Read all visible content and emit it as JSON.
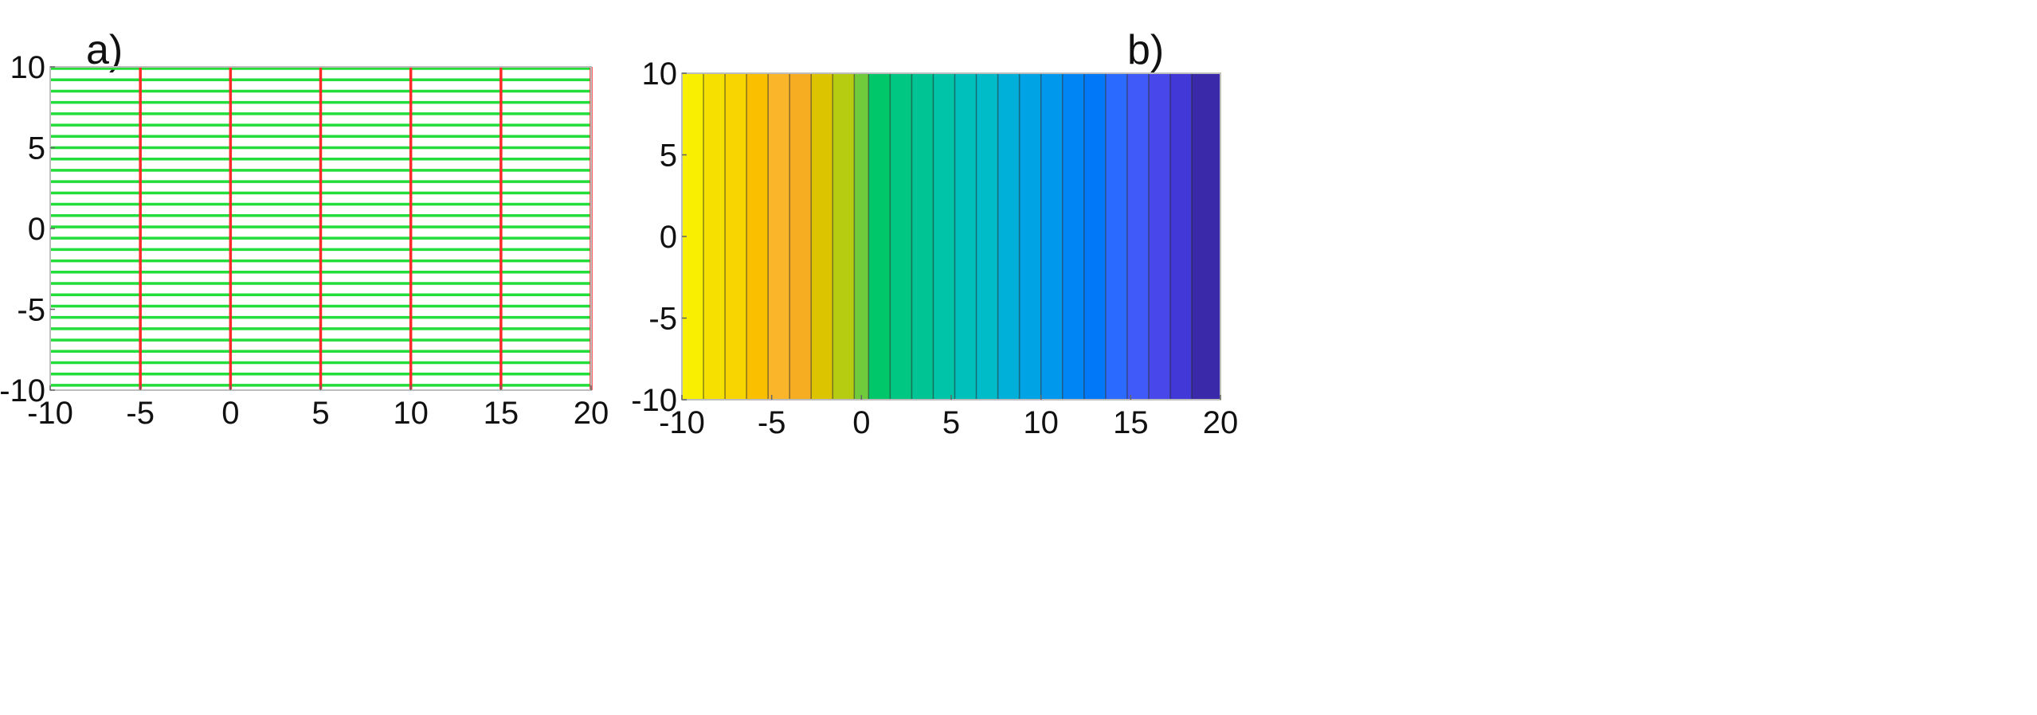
{
  "chart_data": [
    {
      "type": "line",
      "panel_label": "a)",
      "xlim": [
        -10,
        20
      ],
      "ylim": [
        -10,
        10
      ],
      "xticks": [
        "-10",
        "-5",
        "0",
        "5",
        "10",
        "15",
        "20"
      ],
      "yticks": [
        "10",
        "5",
        "0",
        "-5",
        "-10"
      ],
      "series": [
        {
          "color": "#ff2a2a",
          "orientation": "vertical",
          "positions": [
            -5,
            0,
            5,
            10,
            15,
            20
          ]
        },
        {
          "color": "#22dd3a",
          "orientation": "horizontal",
          "positions": [
            -9.7,
            -9.0,
            -8.3,
            -7.6,
            -6.9,
            -6.2,
            -5.5,
            -4.8,
            -4.1,
            -3.4,
            -2.7,
            -2.0,
            -1.3,
            -0.6,
            0.1,
            0.8,
            1.5,
            2.2,
            2.9,
            3.6,
            4.3,
            5.0,
            5.7,
            6.4,
            7.1,
            7.8,
            8.5,
            9.2,
            9.9
          ]
        }
      ],
      "grid": false,
      "legend": "none"
    },
    {
      "type": "heatmap",
      "panel_label": "b)",
      "xlim": [
        -10,
        20
      ],
      "ylim": [
        -10,
        10
      ],
      "xticks": [
        "-10",
        "-5",
        "0",
        "5",
        "10",
        "15",
        "20"
      ],
      "yticks": [
        "10",
        "5",
        "0",
        "-5",
        "-10"
      ],
      "band_edges": [
        -10,
        -8.8,
        -7.6,
        -6.4,
        -5.2,
        -4.0,
        -2.8,
        -1.6,
        -0.4,
        0.4,
        1.6,
        2.8,
        4.0,
        5.2,
        6.4,
        7.6,
        8.8,
        10.0,
        11.2,
        12.4,
        13.6,
        14.8,
        16.0,
        17.2,
        18.4,
        20
      ],
      "band_colors": [
        "#f8f000",
        "#f5e000",
        "#f8d400",
        "#fac000",
        "#fbb52a",
        "#f7ad22",
        "#dcc400",
        "#b6cc10",
        "#6fcb3c",
        "#00c86a",
        "#00c882",
        "#00c494",
        "#00c4a8",
        "#00c0bc",
        "#00bcc8",
        "#00b0d8",
        "#00a4e4",
        "#0098ec",
        "#0086f4",
        "#0078f8",
        "#2a6aff",
        "#3f5af8",
        "#4848ea",
        "#4238d8",
        "#3a2aaa"
      ],
      "grid": false,
      "legend": "none"
    }
  ]
}
